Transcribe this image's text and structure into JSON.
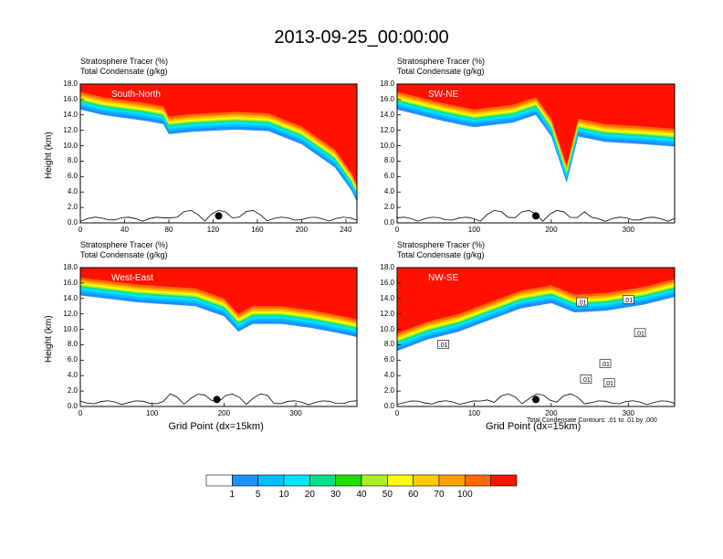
{
  "title": "2013-09-25_00:00:00",
  "colors": [
    "#ffffff",
    "#1e90ff",
    "#00bfff",
    "#00e5ff",
    "#00e08a",
    "#22dd00",
    "#aaee22",
    "#ffff00",
    "#ffcc00",
    "#ffa200",
    "#ff6a00",
    "#ff1100"
  ],
  "chart_data": [
    {
      "type": "heatmap",
      "line1": "Stratosphere Tracer   (%)",
      "line2": "Total Condensate   (g/kg)",
      "label": "South-North",
      "ylabel": "Height (km)",
      "xlabel": "",
      "xlim": [
        0,
        250
      ],
      "ylim": [
        0,
        18
      ],
      "xticks": [
        "0",
        "40",
        "80",
        "120",
        "160",
        "200",
        "240"
      ],
      "xtickvals": [
        0,
        40,
        80,
        120,
        160,
        200,
        240
      ],
      "yticks": [
        "0.0",
        "2.0",
        "4.0",
        "6.0",
        "8.0",
        "10.0",
        "12.0",
        "14.0",
        "16.0",
        "18.0"
      ],
      "tropopause": [
        [
          0,
          15.5
        ],
        [
          20,
          14.8
        ],
        [
          60,
          14.0
        ],
        [
          75,
          13.6
        ],
        [
          80,
          12.3
        ],
        [
          100,
          12.6
        ],
        [
          140,
          12.9
        ],
        [
          170,
          12.7
        ],
        [
          200,
          11.0
        ],
        [
          230,
          8.0
        ],
        [
          245,
          5.0
        ],
        [
          250,
          3.5
        ]
      ],
      "marker_x": 125
    },
    {
      "type": "heatmap",
      "line1": "Stratosphere Tracer   (%)",
      "line2": "Total Condensate   (g/kg)",
      "label": "SW-NE",
      "ylabel": "",
      "xlabel": "",
      "xlim": [
        0,
        360
      ],
      "ylim": [
        0,
        18
      ],
      "xticks": [
        "0",
        "100",
        "200",
        "300"
      ],
      "xtickvals": [
        0,
        100,
        200,
        300
      ],
      "yticks": [
        "0.0",
        "2.0",
        "4.0",
        "6.0",
        "8.0",
        "10.0",
        "12.0",
        "14.0",
        "16.0",
        "18.0"
      ],
      "tropopause": [
        [
          0,
          15.5
        ],
        [
          60,
          14.0
        ],
        [
          100,
          13.2
        ],
        [
          150,
          13.8
        ],
        [
          180,
          14.8
        ],
        [
          200,
          12.0
        ],
        [
          220,
          6.0
        ],
        [
          235,
          12.0
        ],
        [
          270,
          11.3
        ],
        [
          320,
          11.0
        ],
        [
          360,
          10.7
        ]
      ],
      "marker_x": 180
    },
    {
      "type": "heatmap",
      "line1": "Stratosphere Tracer   (%)",
      "line2": "Total Condensate   (g/kg)",
      "label": "West-East",
      "ylabel": "Height (km)",
      "xlabel": "Grid Point (dx=15km)",
      "xlim": [
        0,
        385
      ],
      "ylim": [
        0,
        18
      ],
      "xticks": [
        "0",
        "100",
        "200",
        "300"
      ],
      "xtickvals": [
        0,
        100,
        200,
        300
      ],
      "yticks": [
        "0.0",
        "2.0",
        "4.0",
        "6.0",
        "8.0",
        "10.0",
        "12.0",
        "14.0",
        "16.0",
        "18.0"
      ],
      "tropopause": [
        [
          0,
          15.2
        ],
        [
          80,
          14.3
        ],
        [
          160,
          13.8
        ],
        [
          200,
          12.5
        ],
        [
          220,
          10.5
        ],
        [
          240,
          11.5
        ],
        [
          280,
          11.5
        ],
        [
          320,
          11.0
        ],
        [
          360,
          10.3
        ],
        [
          385,
          9.8
        ]
      ],
      "marker_x": 190
    },
    {
      "type": "heatmap",
      "line1": "Stratosphere Tracer   (%)",
      "line2": "Total Condensate   (g/kg)",
      "label": "NW-SE",
      "ylabel": "",
      "xlabel": "Grid Point (dx=15km)",
      "xlim": [
        0,
        360
      ],
      "ylim": [
        0,
        18
      ],
      "xticks": [
        "0",
        "100",
        "200",
        "300"
      ],
      "xtickvals": [
        0,
        100,
        200,
        300
      ],
      "yticks": [
        "0.0",
        "2.0",
        "4.0",
        "6.0",
        "8.0",
        "10.0",
        "12.0",
        "14.0",
        "16.0",
        "18.0"
      ],
      "tropopause": [
        [
          0,
          8.0
        ],
        [
          40,
          9.5
        ],
        [
          80,
          10.5
        ],
        [
          120,
          12.0
        ],
        [
          160,
          13.5
        ],
        [
          200,
          14.2
        ],
        [
          230,
          13.0
        ],
        [
          270,
          13.2
        ],
        [
          320,
          14.0
        ],
        [
          360,
          15.0
        ]
      ],
      "marker_x": 180,
      "contour_note": "Total Condensate Contours: .01 to .01 by .000",
      "contour_labels": [
        ".01",
        ".01",
        ".01",
        ".01",
        ".01",
        ".01",
        ".01"
      ]
    }
  ],
  "colorbar": {
    "labels": [
      "1",
      "5",
      "10",
      "20",
      "30",
      "40",
      "50",
      "60",
      "70",
      "100"
    ]
  }
}
